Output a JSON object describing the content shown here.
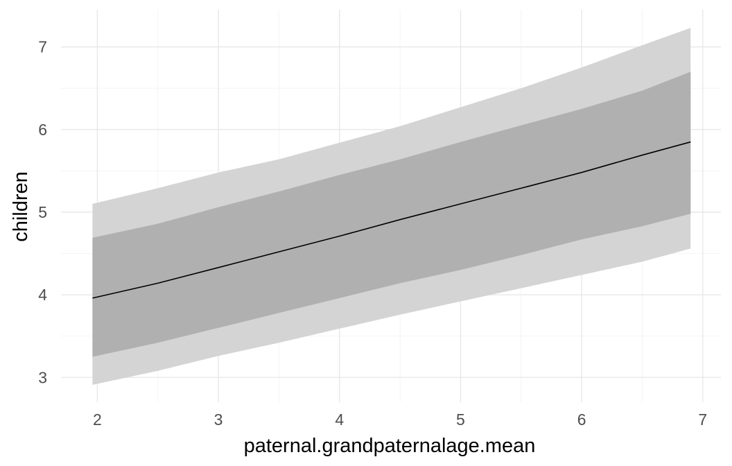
{
  "chart_data": {
    "type": "line",
    "xlabel": "paternal.grandpaternalage.mean",
    "ylabel": "children",
    "xlim": [
      1.7,
      7.15
    ],
    "ylim": [
      2.7,
      7.45
    ],
    "x_ticks": [
      2,
      3,
      4,
      5,
      6,
      7
    ],
    "y_ticks": [
      3,
      4,
      5,
      6,
      7
    ],
    "grid": true,
    "legend": "none",
    "colors": {
      "outer_band": "#d4d4d4",
      "inner_band": "#b0b0b0",
      "line": "#000000",
      "grid_major": "#e6e6e6",
      "grid_minor": "#f2f2f2"
    },
    "x": [
      1.96,
      2.5,
      3.0,
      3.5,
      4.0,
      4.5,
      5.0,
      5.5,
      6.0,
      6.5,
      6.9
    ],
    "series": [
      {
        "role": "line",
        "values": [
          3.96,
          4.14,
          4.33,
          4.52,
          4.71,
          4.91,
          5.1,
          5.29,
          5.48,
          5.69,
          5.85
        ]
      },
      {
        "role": "inner_band",
        "lower": [
          3.25,
          3.42,
          3.6,
          3.78,
          3.96,
          4.14,
          4.3,
          4.48,
          4.67,
          4.83,
          4.98
        ],
        "upper": [
          4.69,
          4.86,
          5.06,
          5.25,
          5.45,
          5.64,
          5.85,
          6.05,
          6.25,
          6.47,
          6.7
        ]
      },
      {
        "role": "outer_band",
        "lower": [
          2.91,
          3.08,
          3.26,
          3.42,
          3.59,
          3.76,
          3.92,
          4.08,
          4.24,
          4.4,
          4.56
        ],
        "upper": [
          5.1,
          5.29,
          5.48,
          5.64,
          5.84,
          6.04,
          6.27,
          6.5,
          6.75,
          7.02,
          7.23
        ]
      }
    ]
  }
}
